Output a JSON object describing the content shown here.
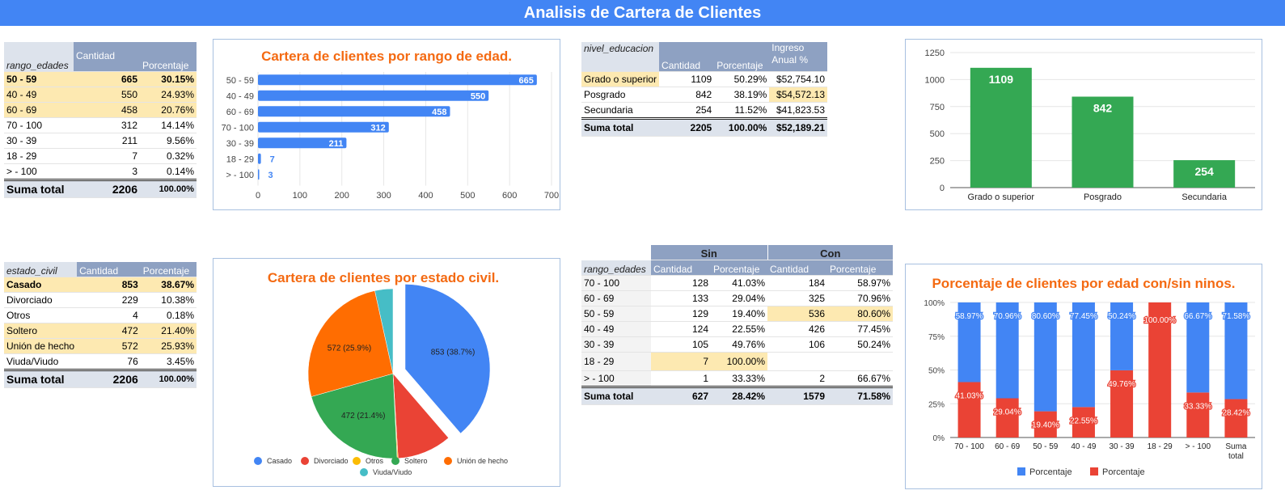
{
  "title": "Analisis de Cartera de Clientes",
  "colors": {
    "blue": "#4285f4",
    "red": "#ea4335",
    "yellow": "#fbbc04",
    "green": "#34a853",
    "orange": "#ff6d01",
    "teal": "#46bdc6",
    "title_orange": "#f46a12"
  },
  "table_age": {
    "headers": [
      "rango_edades",
      "Cantidad",
      "Porcentaje"
    ],
    "rows": [
      {
        "label": "50 - 59",
        "cantidad": "665",
        "pct": "30.15%"
      },
      {
        "label": "40 - 49",
        "cantidad": "550",
        "pct": "24.93%"
      },
      {
        "label": "60 - 69",
        "cantidad": "458",
        "pct": "20.76%"
      },
      {
        "label": "70 - 100",
        "cantidad": "312",
        "pct": "14.14%"
      },
      {
        "label": "30 - 39",
        "cantidad": "211",
        "pct": "9.56%"
      },
      {
        "label": "18 - 29",
        "cantidad": "7",
        "pct": "0.32%"
      },
      {
        "label": "> - 100",
        "cantidad": "3",
        "pct": "0.14%"
      }
    ],
    "total": {
      "label": "Suma total",
      "cantidad": "2206",
      "pct": "100.00%"
    }
  },
  "table_edu": {
    "headers": [
      "nivel_educacion",
      "Cantidad",
      "Porcentaje",
      "Ingreso Anual %"
    ],
    "rows": [
      {
        "label": "Grado o superior",
        "cantidad": "1109",
        "pct": "50.29%",
        "ingreso": "$52,754.10"
      },
      {
        "label": "Posgrado",
        "cantidad": "842",
        "pct": "38.19%",
        "ingreso": "$54,572.13"
      },
      {
        "label": "Secundaria",
        "cantidad": "254",
        "pct": "11.52%",
        "ingreso": "$41,823.53"
      }
    ],
    "total": {
      "label": "Suma total",
      "cantidad": "2205",
      "pct": "100.00%",
      "ingreso": "$52,189.21"
    }
  },
  "table_civil": {
    "headers": [
      "estado_civil",
      "Cantidad",
      "Porcentaje"
    ],
    "rows": [
      {
        "label": "Casado",
        "cantidad": "853",
        "pct": "38.67%"
      },
      {
        "label": "Divorciado",
        "cantidad": "229",
        "pct": "10.38%"
      },
      {
        "label": "Otros",
        "cantidad": "4",
        "pct": "0.18%"
      },
      {
        "label": "Soltero",
        "cantidad": "472",
        "pct": "21.40%"
      },
      {
        "label": "Unión de hecho",
        "cantidad": "572",
        "pct": "25.93%"
      },
      {
        "label": "Viuda/Viudo",
        "cantidad": "76",
        "pct": "3.45%"
      }
    ],
    "total": {
      "label": "Suma total",
      "cantidad": "2206",
      "pct": "100.00%"
    }
  },
  "table_kids": {
    "group_headers": [
      "Sin",
      "Con"
    ],
    "headers": [
      "rango_edades",
      "Cantidad",
      "Porcentaje",
      "Cantidad",
      "Porcentaje"
    ],
    "rows": [
      {
        "label": "70 - 100",
        "sin_c": "128",
        "sin_p": "41.03%",
        "con_c": "184",
        "con_p": "58.97%"
      },
      {
        "label": "60 - 69",
        "sin_c": "133",
        "sin_p": "29.04%",
        "con_c": "325",
        "con_p": "70.96%"
      },
      {
        "label": "50 - 59",
        "sin_c": "129",
        "sin_p": "19.40%",
        "con_c": "536",
        "con_p": "80.60%"
      },
      {
        "label": "40 - 49",
        "sin_c": "124",
        "sin_p": "22.55%",
        "con_c": "426",
        "con_p": "77.45%"
      },
      {
        "label": "30 - 39",
        "sin_c": "105",
        "sin_p": "49.76%",
        "con_c": "106",
        "con_p": "50.24%"
      },
      {
        "label": "18 - 29",
        "sin_c": "7",
        "sin_p": "100.00%",
        "con_c": "",
        "con_p": ""
      },
      {
        "label": "> - 100",
        "sin_c": "1",
        "sin_p": "33.33%",
        "con_c": "2",
        "con_p": "66.67%"
      }
    ],
    "total": {
      "label": "Suma total",
      "sin_c": "627",
      "sin_p": "28.42%",
      "con_c": "1579",
      "con_p": "71.58%"
    }
  },
  "chart_data": [
    {
      "type": "bar",
      "orientation": "horizontal",
      "title": "Cartera de clientes por rango de edad.",
      "categories": [
        "50 - 59",
        "40 - 49",
        "60 - 69",
        "70 - 100",
        "30 - 39",
        "18 - 29",
        "> - 100"
      ],
      "values": [
        665,
        550,
        458,
        312,
        211,
        7,
        3
      ],
      "xlim": [
        0,
        700
      ],
      "xticks": [
        0,
        100,
        200,
        300,
        400,
        500,
        600,
        700
      ],
      "color": "#4285f4",
      "grid": true
    },
    {
      "type": "bar",
      "title": "",
      "categories": [
        "Grado o superior",
        "Posgrado",
        "Secundaria"
      ],
      "values": [
        1109,
        842,
        254
      ],
      "ylim": [
        0,
        1250
      ],
      "yticks": [
        0,
        250,
        500,
        750,
        1000,
        1250
      ],
      "color": "#34a853",
      "grid": true
    },
    {
      "type": "pie",
      "title": "Cartera de clientes por estado civil.",
      "categories": [
        "Casado",
        "Divorciado",
        "Otros",
        "Soltero",
        "Unión de hecho",
        "Viuda/Viudo"
      ],
      "values": [
        853,
        229,
        4,
        472,
        572,
        76
      ],
      "slice_labels": [
        "853 (38.7%)",
        "",
        "",
        "472 (21.4%)",
        "572 (25.9%)",
        ""
      ],
      "colors": [
        "#4285f4",
        "#ea4335",
        "#fbbc04",
        "#34a853",
        "#ff6d01",
        "#46bdc6"
      ],
      "legend": "bottom"
    },
    {
      "type": "bar",
      "stacked": true,
      "title": "Porcentaje de clientes por edad con/sin ninos.",
      "categories": [
        "70 - 100",
        "60 - 69",
        "50 - 59",
        "40 - 49",
        "30 - 39",
        "18 - 29",
        "> - 100",
        "Suma total"
      ],
      "series": [
        {
          "name": "Porcentaje",
          "values": [
            58.97,
            70.96,
            80.6,
            77.45,
            50.24,
            0,
            66.67,
            71.58
          ],
          "labels": [
            "58.97%",
            "70.96%",
            "80.60%",
            "77.45%",
            "50.24%",
            "",
            "66.67%",
            "71.58%"
          ],
          "color": "#4285f4"
        },
        {
          "name": "Porcentaje",
          "values": [
            41.03,
            29.04,
            19.4,
            22.55,
            49.76,
            100,
            33.33,
            28.42
          ],
          "labels": [
            "41.03%",
            "29.04%",
            "19.40%",
            "22.55%",
            "49.76%",
            "100.00%",
            "33.33%",
            "28.42%"
          ],
          "color": "#ea4335"
        }
      ],
      "ylim": [
        0,
        100
      ],
      "yticks": [
        "0%",
        "25%",
        "50%",
        "75%",
        "100%"
      ],
      "legend": "bottom",
      "grid": true
    }
  ]
}
